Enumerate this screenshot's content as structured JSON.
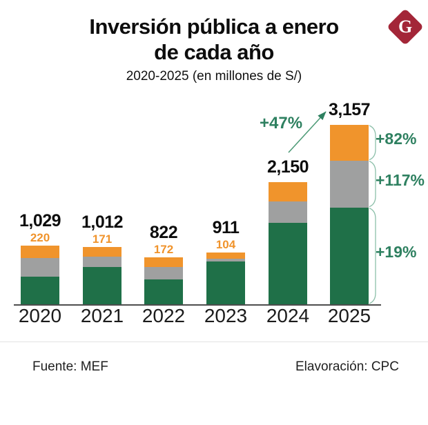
{
  "header": {
    "title_line1": "Inversión pública a enero",
    "title_line2": "de cada año",
    "subtitle": "2020-2025 (en millones de S/)",
    "logo_letter": "G"
  },
  "chart_data": {
    "type": "bar",
    "stacked": true,
    "title": "Inversión pública a enero de cada año",
    "subtitle": "2020-2025 (en millones de S/)",
    "unit": "millones de S/",
    "categories": [
      "2020",
      "2021",
      "2022",
      "2023",
      "2024",
      "2025"
    ],
    "series": [
      {
        "name": "segmento-verde",
        "color": "#1F7048",
        "values": [
          489,
          650,
          433,
          757,
          1433,
          1705
        ]
      },
      {
        "name": "segmento-gris",
        "color": "#9FA0A0",
        "values": [
          320,
          191,
          217,
          50,
          377,
          826
        ]
      },
      {
        "name": "segmento-naranja",
        "color": "#F0942C",
        "values": [
          220,
          171,
          172,
          104,
          340,
          626
        ]
      }
    ],
    "total_labels": [
      "1,029",
      "1,012",
      "822",
      "911",
      "2,150",
      "3,157"
    ],
    "orange_segment_labels": [
      "220",
      "171",
      "172",
      "104",
      "",
      ""
    ],
    "annotations": {
      "total_growth": "+47%",
      "orange_growth": "+82%",
      "gray_growth": "+117%",
      "green_growth": "+19%"
    },
    "ylim": [
      0,
      3200
    ],
    "grid": false,
    "legend": "none"
  },
  "colors": {
    "green": "#1F7048",
    "gray": "#9FA0A0",
    "orange": "#F0942C",
    "accent_teal": "#2E8060",
    "brace_green": "#8CBFA9",
    "arrow_green": "#4E9B77",
    "logo_red": "#A32638",
    "axis": "#4d4d4d"
  },
  "footer": {
    "source": "Fuente: MEF",
    "elaboration": "Elavoración: CPC"
  }
}
